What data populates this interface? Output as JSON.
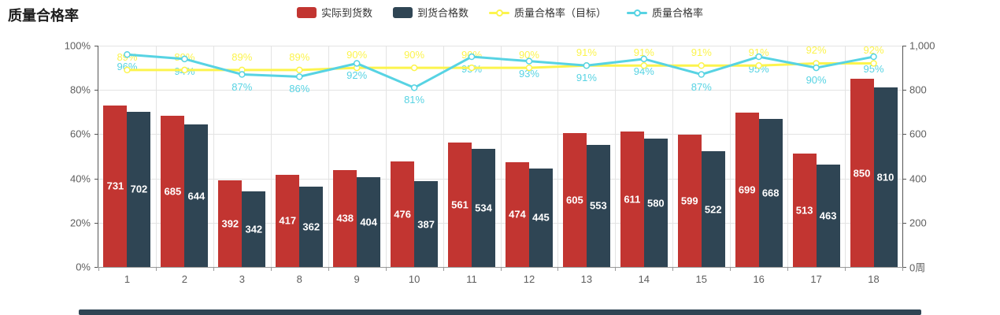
{
  "title": "质量合格率",
  "colors": {
    "bar_actual": "#c23531",
    "bar_qualified": "#2f4554",
    "line_target": "#fcf44d",
    "line_rate": "#57d3e3",
    "axis": "#555555",
    "grid": "#e3e3e3",
    "label_text": "#5e5e5e"
  },
  "legend": {
    "items": [
      {
        "label": "实际到货数",
        "marker": "rect",
        "color": "#c23531"
      },
      {
        "label": "到货合格数",
        "marker": "rect",
        "color": "#2f4554"
      },
      {
        "label": "质量合格率（目标）",
        "marker": "line",
        "color": "#fcf44d"
      },
      {
        "label": "质量合格率",
        "marker": "line",
        "color": "#57d3e3"
      }
    ]
  },
  "chart_data": {
    "type": "bar",
    "title": "质量合格率",
    "categories": [
      "1",
      "2",
      "3",
      "8",
      "9",
      "10",
      "11",
      "12",
      "13",
      "14",
      "15",
      "16",
      "17",
      "18"
    ],
    "series": [
      {
        "name": "实际到货数",
        "type": "bar",
        "color": "#c23531",
        "axis": "right",
        "values": [
          731,
          685,
          392,
          417,
          438,
          476,
          561,
          474,
          605,
          611,
          599,
          699,
          513,
          850
        ]
      },
      {
        "name": "到货合格数",
        "type": "bar",
        "color": "#2f4554",
        "axis": "right",
        "values": [
          702,
          644,
          342,
          362,
          404,
          387,
          534,
          445,
          553,
          580,
          522,
          668,
          463,
          810
        ]
      },
      {
        "name": "质量合格率（目标）",
        "type": "line",
        "color": "#fcf44d",
        "axis": "left",
        "unit": "%",
        "label_position": "top",
        "values": [
          89,
          89,
          89,
          89,
          90,
          90,
          90,
          90,
          91,
          91,
          91,
          91,
          92,
          92
        ]
      },
      {
        "name": "质量合格率",
        "type": "line",
        "color": "#57d3e3",
        "axis": "left",
        "unit": "%",
        "label_position": "bottom",
        "values": [
          96,
          94,
          87,
          86,
          92,
          81,
          95,
          93,
          91,
          94,
          87,
          95,
          90,
          95
        ]
      }
    ],
    "left_axis": {
      "min": 0,
      "max": 100,
      "tick_labels": [
        "0%",
        "20%",
        "40%",
        "60%",
        "80%",
        "100%"
      ]
    },
    "right_axis": {
      "min": 0,
      "max": 1000,
      "tick_labels": [
        "0周",
        "200",
        "400",
        "600",
        "800",
        "1,000"
      ]
    },
    "grid": true,
    "legend_position": "top-center"
  }
}
